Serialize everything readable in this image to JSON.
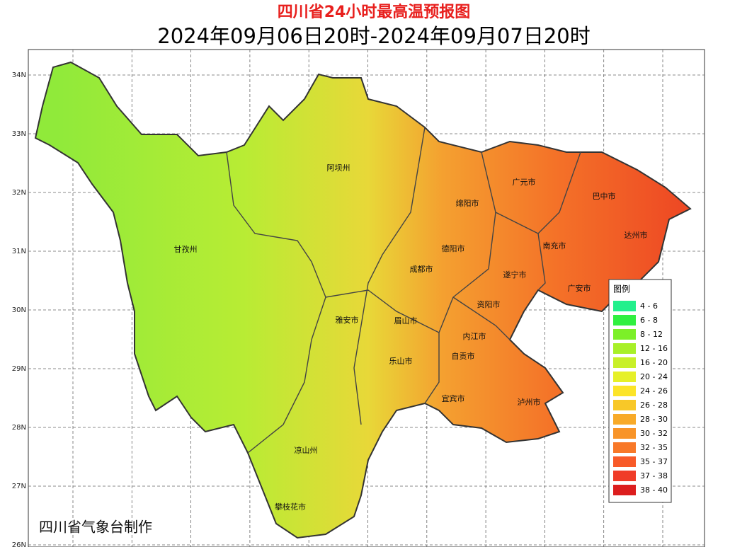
{
  "header": {
    "title": "四川省24小时最高温预报图",
    "subtitle": "2024年09月06日20时-2024年09月07日20时"
  },
  "lat_labels": [
    "34N",
    "33N",
    "32N",
    "31N",
    "30N",
    "29N",
    "28N",
    "27N",
    "26N"
  ],
  "regions": [
    "阿坝州",
    "甘孜州",
    "广元市",
    "巴中市",
    "绵阳市",
    "达州市",
    "德阳市",
    "南充市",
    "成都市",
    "遂宁市",
    "广安市",
    "资阳市",
    "雅安市",
    "眉山市",
    "内江市",
    "自贡市",
    "乐山市",
    "宜宾市",
    "泸州市",
    "凉山州",
    "攀枝花市"
  ],
  "legend": {
    "title": "图例",
    "items": [
      {
        "label": "4 - 6",
        "color": "#22f08c"
      },
      {
        "label": "6 - 8",
        "color": "#30f040"
      },
      {
        "label": "8 - 12",
        "color": "#7cf028"
      },
      {
        "label": "12 - 16",
        "color": "#a8f028"
      },
      {
        "label": "16 - 20",
        "color": "#c8f028"
      },
      {
        "label": "20 - 24",
        "color": "#e6f028"
      },
      {
        "label": "24 - 26",
        "color": "#fce428"
      },
      {
        "label": "26 - 28",
        "color": "#f8c828"
      },
      {
        "label": "28 - 30",
        "color": "#f8aa28"
      },
      {
        "label": "30 - 32",
        "color": "#f89428"
      },
      {
        "label": "32 - 35",
        "color": "#f87828"
      },
      {
        "label": "35 - 37",
        "color": "#f85a28"
      },
      {
        "label": "37 - 38",
        "color": "#f03c28"
      },
      {
        "label": "38 - 40",
        "color": "#dc1e1e"
      }
    ]
  },
  "footer": {
    "credit": "四川省气象台制作"
  }
}
